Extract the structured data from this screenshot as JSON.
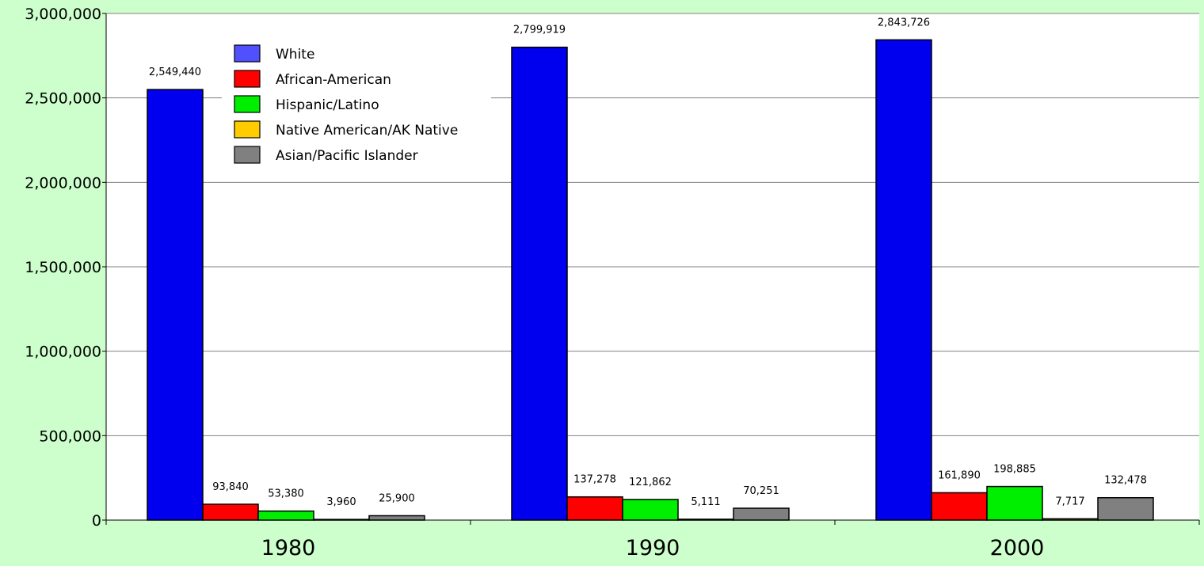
{
  "chart_data": {
    "type": "bar",
    "title": "",
    "xlabel": "",
    "ylabel": "",
    "categories": [
      "1980",
      "1990",
      "2000"
    ],
    "ylim": [
      0,
      3000000
    ],
    "yticks": [
      0,
      500000,
      1000000,
      1500000,
      2000000,
      2500000,
      3000000
    ],
    "ytick_labels": [
      "0",
      "500,000",
      "1,000,000",
      "1,500,000",
      "2,000,000",
      "2,500,000",
      "3,000,000"
    ],
    "grid": true,
    "legend_position": "top-left",
    "series": [
      {
        "name": "White",
        "color": "#0000ee",
        "legend_color": "#5050ff",
        "values": [
          2549440,
          2799919,
          2843726
        ],
        "labels": [
          "2,549,440",
          "2,799,919",
          "2,843,726"
        ]
      },
      {
        "name": "African-American",
        "color": "#ff0000",
        "legend_color": "#ff0000",
        "values": [
          93840,
          137278,
          161890
        ],
        "labels": [
          "93,840",
          "137,278",
          "161,890"
        ]
      },
      {
        "name": "Hispanic/Latino",
        "color": "#00ee00",
        "legend_color": "#00ee00",
        "values": [
          53380,
          121862,
          198885
        ],
        "labels": [
          "53,380",
          "121,862",
          "198,885"
        ]
      },
      {
        "name": "Native American/AK Native",
        "color": "#ffcc00",
        "legend_color": "#ffcc00",
        "values": [
          3960,
          5111,
          7717
        ],
        "labels": [
          "3,960",
          "5,111",
          "7,717"
        ]
      },
      {
        "name": "Asian/Pacific Islander",
        "color": "#808080",
        "legend_color": "#808080",
        "values": [
          25900,
          70251,
          132478
        ],
        "labels": [
          "25,900",
          "70,251",
          "132,478"
        ]
      }
    ]
  }
}
